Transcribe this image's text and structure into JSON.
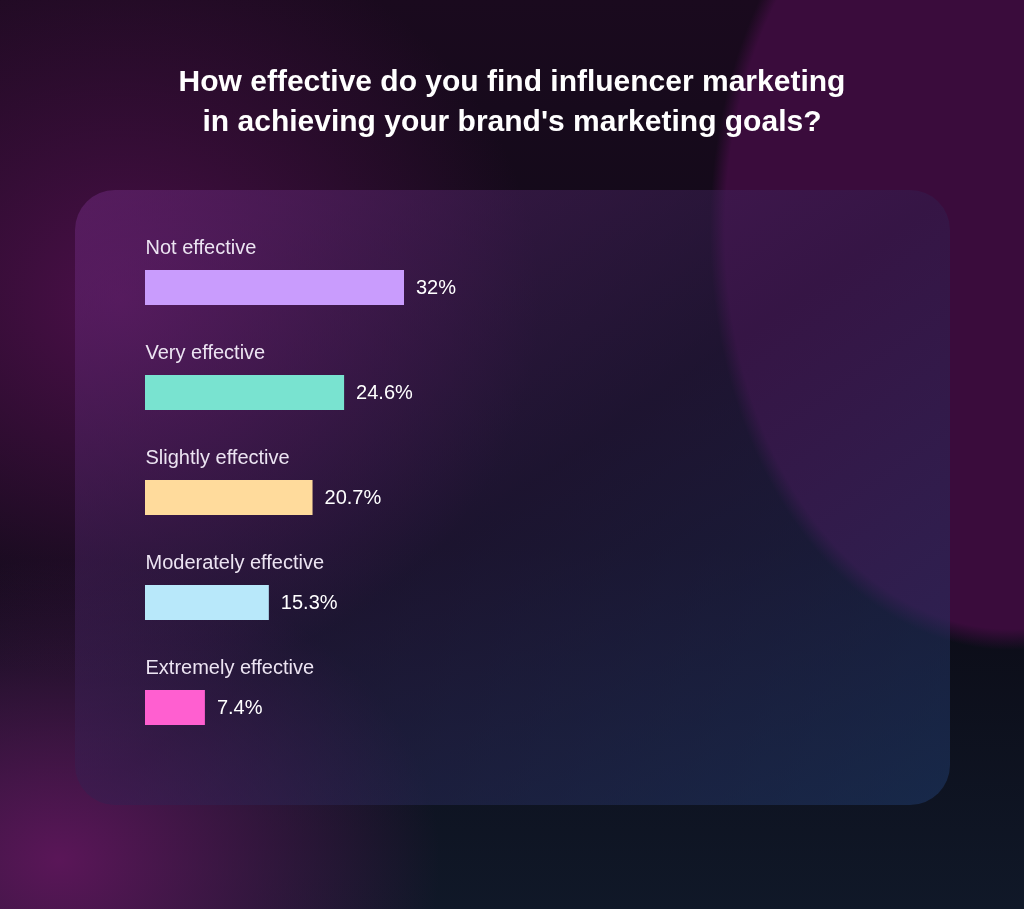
{
  "chart_data": {
    "type": "bar",
    "orientation": "horizontal",
    "title": "How effective do you find influencer marketing in achieving your brand's marketing goals?",
    "categories": [
      "Not effective",
      "Very effective",
      "Slightly effective",
      "Moderately effective",
      "Extremely effective"
    ],
    "values": [
      32,
      24.6,
      20.7,
      15.3,
      7.4
    ],
    "value_labels": [
      "32%",
      "24.6%",
      "20.7%",
      "15.3%",
      "7.4%"
    ],
    "colors": [
      "#c99cfd",
      "#79e3d0",
      "#ffdb9c",
      "#b8e8fa",
      "#ff5fd0"
    ]
  }
}
